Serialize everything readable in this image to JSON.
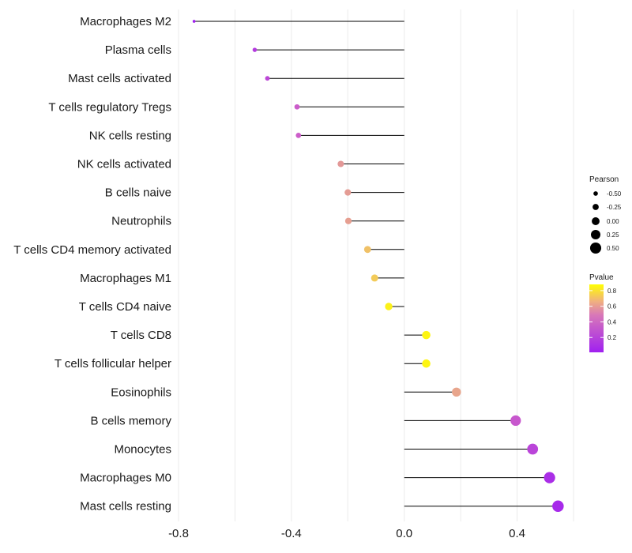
{
  "chart_data": {
    "type": "lollipop",
    "title": "",
    "xlabel": "",
    "ylabel": "",
    "xlim": [
      -0.8,
      0.6
    ],
    "xticks": [
      -0.8,
      -0.4,
      0.0,
      0.4
    ],
    "xtick_labels": [
      "-0.8",
      "-0.4",
      "0.0",
      "0.4"
    ],
    "grid": true,
    "categories": [
      "Macrophages M2",
      "Plasma cells",
      "Mast cells activated",
      "T cells regulatory  Tregs",
      "NK cells resting",
      "NK cells activated",
      "B cells naive",
      "Neutrophils",
      "T cells CD4 memory activated",
      "Macrophages M1",
      "T cells CD4 naive",
      "T cells CD8",
      "T cells follicular helper",
      "Eosinophils",
      "B cells memory",
      "Monocytes",
      "Macrophages M0",
      "Mast cells resting"
    ],
    "pearson": [
      -0.745,
      -0.53,
      -0.485,
      -0.38,
      -0.375,
      -0.225,
      -0.2,
      -0.198,
      -0.13,
      -0.105,
      -0.055,
      0.078,
      0.078,
      0.185,
      0.395,
      0.455,
      0.515,
      0.545
    ],
    "pvalue": [
      0.01,
      0.18,
      0.25,
      0.38,
      0.39,
      0.58,
      0.59,
      0.6,
      0.7,
      0.73,
      0.84,
      0.85,
      0.85,
      0.62,
      0.35,
      0.24,
      0.1,
      0.07
    ],
    "legend_size": {
      "title": "Pearson",
      "labels": [
        "-0.50",
        "-0.25",
        "0.00",
        "0.25",
        "0.50"
      ],
      "values": [
        -0.5,
        -0.25,
        0.0,
        0.25,
        0.5
      ]
    },
    "legend_color": {
      "title": "Pvalue",
      "labels": [
        "0.8",
        "0.6",
        "0.4",
        "0.2"
      ],
      "values": [
        0.8,
        0.6,
        0.4,
        0.2
      ],
      "range": [
        0.01,
        0.88
      ],
      "low_color": "#a020f0",
      "high_color": "#ffff00"
    },
    "colors": {
      "stem": "#000000",
      "grid": "#ebebeb"
    }
  }
}
